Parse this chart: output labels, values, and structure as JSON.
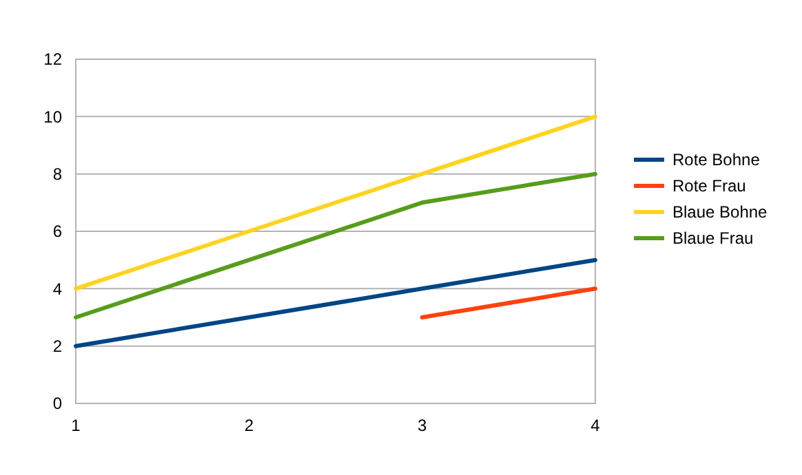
{
  "chart_data": {
    "type": "line",
    "x": [
      1,
      2,
      3,
      4
    ],
    "xlim": [
      1,
      4
    ],
    "xticks": [
      1,
      2,
      3,
      4
    ],
    "ylim": [
      0,
      12
    ],
    "yticks": [
      0,
      2,
      4,
      6,
      8,
      10,
      12
    ],
    "grid": "y",
    "legend": "right",
    "marker": "none",
    "line_style": "solid",
    "series": [
      {
        "name": "Rote Bohne",
        "color": "#004586",
        "values": [
          2,
          3,
          4,
          5
        ]
      },
      {
        "name": "Rote Frau",
        "color": "#ff420e",
        "values": [
          null,
          null,
          3,
          4
        ]
      },
      {
        "name": "Blaue Bohne",
        "color": "#ffd320",
        "values": [
          4,
          6,
          8,
          10
        ]
      },
      {
        "name": "Blaue Frau",
        "color": "#579d1c",
        "values": [
          3,
          5,
          7,
          8
        ]
      }
    ]
  }
}
